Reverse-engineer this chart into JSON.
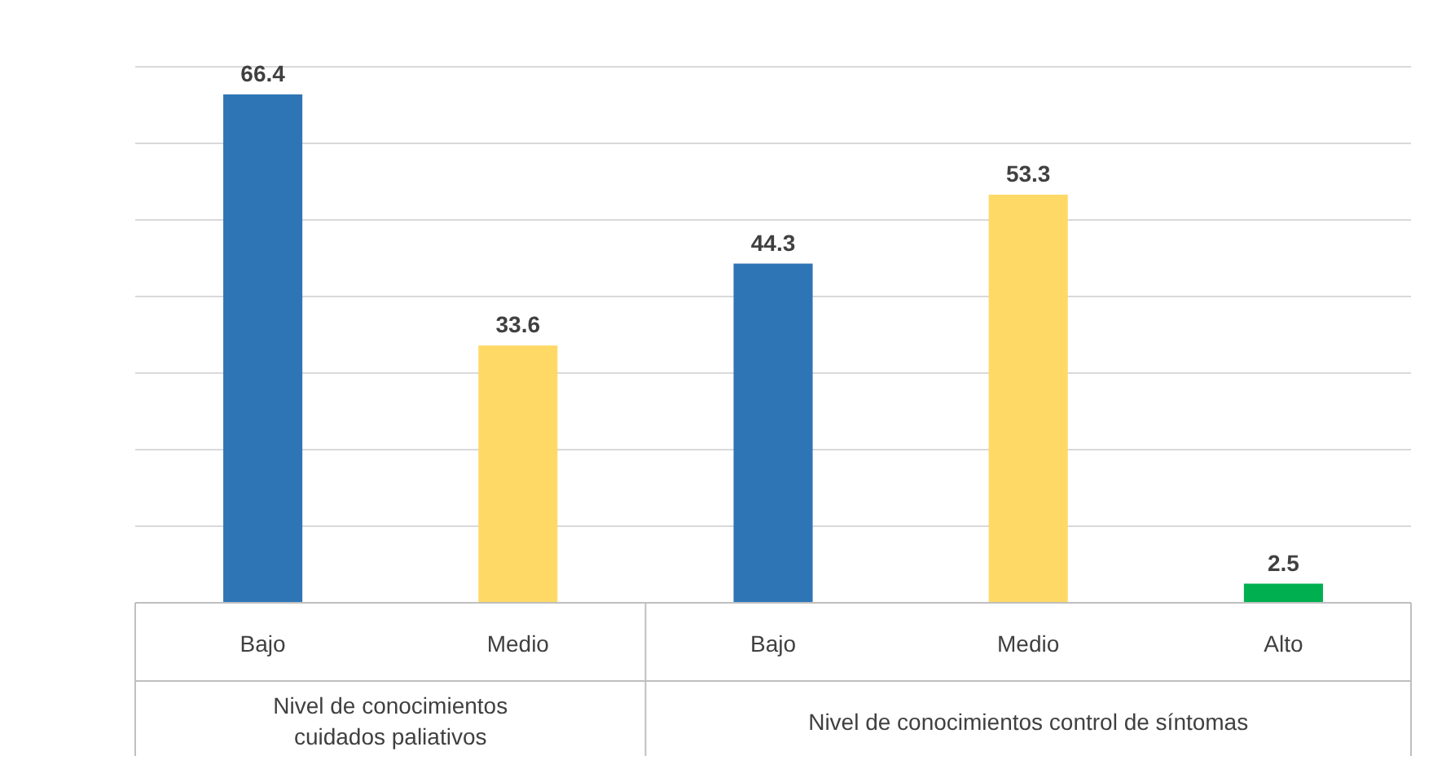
{
  "chart_data": {
    "type": "bar",
    "categories": [
      "Bajo",
      "Medio",
      "Bajo",
      "Medio",
      "Alto"
    ],
    "values": [
      66.4,
      33.6,
      44.3,
      53.3,
      2.5
    ],
    "colors": [
      "#2e75b6",
      "#ffd966",
      "#2e75b6",
      "#ffd966",
      "#00b050"
    ],
    "ylim": [
      0,
      70
    ],
    "yticks": [
      {
        "value": 0,
        "label": null
      },
      {
        "value": 10,
        "label": null
      },
      {
        "value": 20,
        "label": null
      },
      {
        "value": 30,
        "label": null
      },
      {
        "value": 40,
        "label": null
      },
      {
        "value": 50,
        "label": null
      },
      {
        "value": 60,
        "label": null
      },
      {
        "value": 70,
        "label": null
      }
    ],
    "tick_labels": "x",
    "grid": "y",
    "data_labels": true,
    "annotations": [
      "Nivel de conocimientos\ncuidados paliativos",
      "Nivel de conocimientos  control de síntomas"
    ]
  }
}
